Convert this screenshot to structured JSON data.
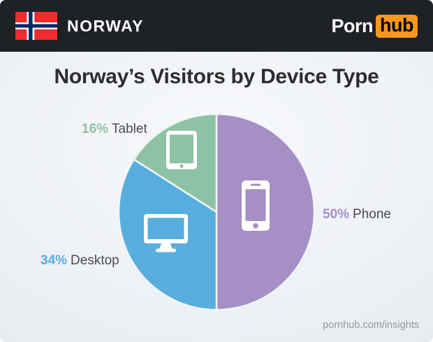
{
  "header": {
    "country": "NORWAY",
    "flag": "norway-flag",
    "logo": {
      "part1": "Porn",
      "part2": "hub",
      "hub_bg": "#f7971d"
    }
  },
  "title": "Norway’s Visitors by Device Type",
  "chart_data": {
    "type": "pie",
    "title": "Norway’s Visitors by Device Type",
    "start_angle_deg": 0,
    "direction": "clockwise",
    "legend_position": "callouts-around-pie",
    "slices": [
      {
        "label": "Phone",
        "value": 50,
        "pct_text": "50%",
        "color": "#a58fc5",
        "icon": "smartphone-icon"
      },
      {
        "label": "Desktop",
        "value": 34,
        "pct_text": "34%",
        "color": "#57aede",
        "icon": "desktop-monitor-icon"
      },
      {
        "label": "Tablet",
        "value": 16,
        "pct_text": "16%",
        "color": "#8ec2a4",
        "icon": "tablet-icon"
      }
    ]
  },
  "labels": {
    "phone": {
      "pct": "50%",
      "name": "Phone"
    },
    "desktop": {
      "pct": "34%",
      "name": "Desktop"
    },
    "tablet": {
      "pct": "16%",
      "name": "Tablet"
    }
  },
  "footer": {
    "url": "pornhub.com/insights"
  },
  "colors": {
    "header_bg": "#1e2126",
    "background": "#eef1f5",
    "title_text": "#2d2d2f",
    "label_text": "#4c4c4e",
    "footer_text": "#9199a2",
    "flag_red": "#ef2b2d",
    "flag_blue": "#002868"
  }
}
